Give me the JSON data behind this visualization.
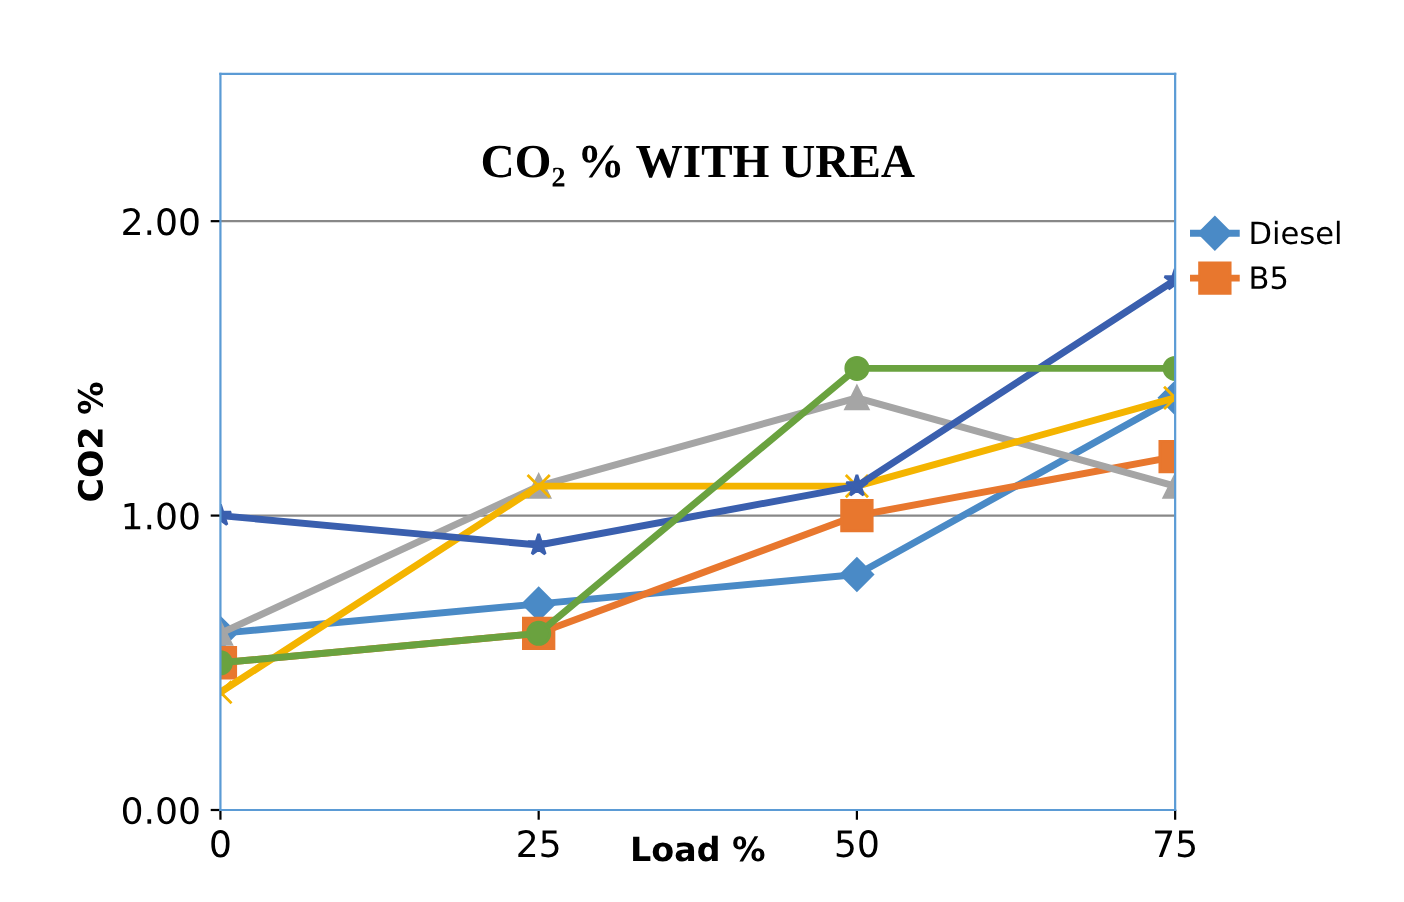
{
  "chart_data": {
    "type": "line",
    "title": "CO₂ % WITH UREA",
    "xlabel": "Load %",
    "ylabel": "CO2 %",
    "x": [
      0,
      25,
      50,
      75
    ],
    "xlim": [
      0,
      75
    ],
    "xticks": [
      0,
      25,
      50,
      75
    ],
    "ylim": [
      0,
      2.5
    ],
    "yticks": [
      {
        "value": 0,
        "label": "0.00"
      },
      {
        "value": 1,
        "label": "1.00"
      },
      {
        "value": 2,
        "label": "2.00"
      }
    ],
    "grid": "y",
    "legend": "right",
    "series": [
      {
        "name": "Diesel",
        "color": "#4a8ac6",
        "marker": "diamond",
        "values": [
          0.6,
          0.7,
          0.8,
          1.4
        ]
      },
      {
        "name": "B5",
        "color": "#e8772e",
        "marker": "square",
        "values": [
          0.5,
          0.6,
          1.0,
          1.2
        ]
      },
      {
        "color": "#a5a5a5",
        "marker": "triangle",
        "values": [
          0.6,
          1.1,
          1.4,
          1.1
        ]
      },
      {
        "color": "#f4b400",
        "marker": "cross",
        "values": [
          0.4,
          1.1,
          1.1,
          1.4
        ]
      },
      {
        "color": "#3a5fae",
        "marker": "star",
        "values": [
          1.0,
          0.9,
          1.1,
          1.8
        ]
      },
      {
        "color": "#6aa23f",
        "marker": "circle",
        "values": [
          0.5,
          0.6,
          1.5,
          1.5
        ]
      }
    ]
  }
}
